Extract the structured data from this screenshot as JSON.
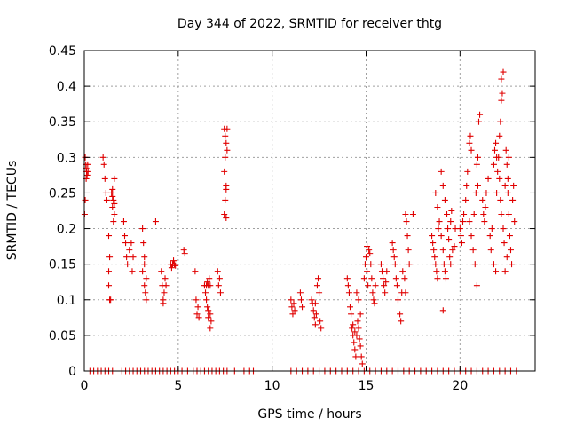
{
  "chart_data": {
    "type": "scatter",
    "title": "Day 344 of 2022, SRMTID for receiver thtg",
    "xlabel": "GPS time / hours",
    "ylabel": "SRMTID / TECUs",
    "xlim": [
      0,
      24
    ],
    "ylim": [
      0,
      0.45
    ],
    "xticks": [
      0,
      5,
      10,
      15,
      20
    ],
    "xtick_labels": [
      "0",
      "5",
      "10",
      "15",
      "20"
    ],
    "yticks": [
      0,
      0.05,
      0.1,
      0.15,
      0.2,
      0.25,
      0.3,
      0.35,
      0.4,
      0.45
    ],
    "ytick_labels": [
      "0",
      "0.05",
      "0.1",
      "0.15",
      "0.2",
      "0.25",
      "0.3",
      "0.35",
      "0.4",
      "0.45"
    ],
    "grid": true,
    "marker": "+",
    "colors": {
      "series": "#e00000",
      "grid": "#a0a0a0",
      "axis": "#000000"
    },
    "series": [
      {
        "name": "SRMTID",
        "points": [
          [
            0.05,
            0.3
          ],
          [
            0.08,
            0.29
          ],
          [
            0.1,
            0.285
          ],
          [
            0.12,
            0.28
          ],
          [
            0.15,
            0.275
          ],
          [
            0.18,
            0.29
          ],
          [
            0.2,
            0.28
          ],
          [
            0.05,
            0.24
          ],
          [
            0.02,
            0.22
          ],
          [
            0.1,
            0.27
          ],
          [
            1.0,
            0.3
          ],
          [
            1.05,
            0.29
          ],
          [
            1.1,
            0.27
          ],
          [
            1.15,
            0.25
          ],
          [
            1.2,
            0.24
          ],
          [
            1.3,
            0.19
          ],
          [
            1.35,
            0.16
          ],
          [
            1.3,
            0.12
          ],
          [
            1.35,
            0.1
          ],
          [
            1.4,
            0.1
          ],
          [
            1.3,
            0.14
          ],
          [
            1.45,
            0.25
          ],
          [
            1.5,
            0.245
          ],
          [
            1.55,
            0.24
          ],
          [
            1.5,
            0.23
          ],
          [
            1.6,
            0.22
          ],
          [
            1.55,
            0.21
          ],
          [
            1.6,
            0.27
          ],
          [
            1.5,
            0.255
          ],
          [
            1.6,
            0.235
          ],
          [
            2.1,
            0.21
          ],
          [
            2.15,
            0.19
          ],
          [
            2.2,
            0.18
          ],
          [
            2.25,
            0.16
          ],
          [
            2.3,
            0.15
          ],
          [
            2.4,
            0.17
          ],
          [
            2.5,
            0.18
          ],
          [
            2.6,
            0.16
          ],
          [
            2.55,
            0.14
          ],
          [
            3.1,
            0.2
          ],
          [
            3.15,
            0.18
          ],
          [
            3.2,
            0.16
          ],
          [
            3.1,
            0.14
          ],
          [
            3.2,
            0.12
          ],
          [
            3.3,
            0.1
          ],
          [
            3.25,
            0.11
          ],
          [
            3.3,
            0.13
          ],
          [
            3.2,
            0.15
          ],
          [
            3.8,
            0.21
          ],
          [
            4.1,
            0.14
          ],
          [
            4.15,
            0.12
          ],
          [
            4.2,
            0.1
          ],
          [
            4.25,
            0.11
          ],
          [
            4.3,
            0.13
          ],
          [
            4.35,
            0.12
          ],
          [
            4.2,
            0.095
          ],
          [
            4.6,
            0.15
          ],
          [
            4.65,
            0.145
          ],
          [
            4.7,
            0.15
          ],
          [
            4.75,
            0.155
          ],
          [
            4.8,
            0.15
          ],
          [
            4.85,
            0.148
          ],
          [
            5.3,
            0.17
          ],
          [
            5.35,
            0.165
          ],
          [
            5.9,
            0.14
          ],
          [
            5.95,
            0.1
          ],
          [
            6.0,
            0.08
          ],
          [
            6.05,
            0.09
          ],
          [
            6.1,
            0.075
          ],
          [
            6.4,
            0.12
          ],
          [
            6.45,
            0.11
          ],
          [
            6.5,
            0.1
          ],
          [
            6.55,
            0.09
          ],
          [
            6.6,
            0.085
          ],
          [
            6.6,
            0.12
          ],
          [
            6.65,
            0.13
          ],
          [
            6.7,
            0.12
          ],
          [
            6.7,
            0.08
          ],
          [
            6.75,
            0.07
          ],
          [
            6.7,
            0.06
          ],
          [
            6.6,
            0.075
          ],
          [
            6.5,
            0.12
          ],
          [
            6.55,
            0.125
          ],
          [
            7.1,
            0.14
          ],
          [
            7.15,
            0.12
          ],
          [
            7.2,
            0.13
          ],
          [
            7.25,
            0.11
          ],
          [
            7.45,
            0.34
          ],
          [
            7.5,
            0.33
          ],
          [
            7.55,
            0.32
          ],
          [
            7.6,
            0.31
          ],
          [
            7.5,
            0.3
          ],
          [
            7.45,
            0.28
          ],
          [
            7.55,
            0.26
          ],
          [
            7.5,
            0.24
          ],
          [
            7.45,
            0.22
          ],
          [
            7.55,
            0.215
          ],
          [
            7.6,
            0.34
          ],
          [
            7.55,
            0.255
          ],
          [
            11.0,
            0.1
          ],
          [
            11.05,
            0.09
          ],
          [
            11.1,
            0.08
          ],
          [
            11.15,
            0.095
          ],
          [
            11.2,
            0.085
          ],
          [
            11.5,
            0.11
          ],
          [
            11.55,
            0.1
          ],
          [
            11.6,
            0.09
          ],
          [
            12.1,
            0.1
          ],
          [
            12.15,
            0.095
          ],
          [
            12.2,
            0.085
          ],
          [
            12.25,
            0.075
          ],
          [
            12.3,
            0.065
          ],
          [
            12.35,
            0.08
          ],
          [
            12.4,
            0.12
          ],
          [
            12.45,
            0.13
          ],
          [
            12.5,
            0.11
          ],
          [
            12.55,
            0.07
          ],
          [
            12.6,
            0.06
          ],
          [
            12.3,
            0.095
          ],
          [
            14.0,
            0.13
          ],
          [
            14.05,
            0.12
          ],
          [
            14.1,
            0.11
          ],
          [
            14.15,
            0.09
          ],
          [
            14.2,
            0.08
          ],
          [
            14.25,
            0.06
          ],
          [
            14.3,
            0.05
          ],
          [
            14.35,
            0.04
          ],
          [
            14.4,
            0.03
          ],
          [
            14.45,
            0.02
          ],
          [
            14.5,
            0.05
          ],
          [
            14.55,
            0.07
          ],
          [
            14.6,
            0.06
          ],
          [
            14.65,
            0.045
          ],
          [
            14.7,
            0.035
          ],
          [
            14.75,
            0.02
          ],
          [
            14.8,
            0.01
          ],
          [
            14.5,
            0.11
          ],
          [
            14.6,
            0.1
          ],
          [
            14.7,
            0.08
          ],
          [
            14.4,
            0.055
          ],
          [
            14.3,
            0.065
          ],
          [
            14.9,
            0.13
          ],
          [
            14.95,
            0.15
          ],
          [
            15.0,
            0.16
          ],
          [
            15.05,
            0.14
          ],
          [
            15.1,
            0.12
          ],
          [
            15.15,
            0.17
          ],
          [
            15.2,
            0.165
          ],
          [
            15.25,
            0.15
          ],
          [
            15.3,
            0.13
          ],
          [
            15.35,
            0.11
          ],
          [
            15.4,
            0.1
          ],
          [
            15.45,
            0.095
          ],
          [
            15.5,
            0.12
          ],
          [
            15.05,
            0.175
          ],
          [
            15.8,
            0.15
          ],
          [
            15.85,
            0.14
          ],
          [
            15.9,
            0.13
          ],
          [
            15.95,
            0.12
          ],
          [
            16.0,
            0.11
          ],
          [
            16.05,
            0.125
          ],
          [
            16.1,
            0.14
          ],
          [
            16.4,
            0.18
          ],
          [
            16.45,
            0.17
          ],
          [
            16.5,
            0.16
          ],
          [
            16.55,
            0.15
          ],
          [
            16.6,
            0.13
          ],
          [
            16.65,
            0.12
          ],
          [
            16.7,
            0.1
          ],
          [
            16.8,
            0.08
          ],
          [
            16.85,
            0.07
          ],
          [
            16.9,
            0.11
          ],
          [
            16.95,
            0.14
          ],
          [
            17.1,
            0.22
          ],
          [
            17.15,
            0.21
          ],
          [
            17.2,
            0.19
          ],
          [
            17.25,
            0.17
          ],
          [
            17.3,
            0.15
          ],
          [
            17.05,
            0.13
          ],
          [
            17.1,
            0.11
          ],
          [
            17.5,
            0.22
          ],
          [
            18.5,
            0.19
          ],
          [
            18.55,
            0.18
          ],
          [
            18.6,
            0.17
          ],
          [
            18.65,
            0.16
          ],
          [
            18.7,
            0.15
          ],
          [
            18.75,
            0.14
          ],
          [
            18.8,
            0.13
          ],
          [
            18.7,
            0.25
          ],
          [
            18.8,
            0.23
          ],
          [
            18.9,
            0.21
          ],
          [
            18.85,
            0.2
          ],
          [
            19.0,
            0.19
          ],
          [
            19.1,
            0.17
          ],
          [
            19.15,
            0.15
          ],
          [
            19.2,
            0.14
          ],
          [
            19.25,
            0.13
          ],
          [
            19.0,
            0.28
          ],
          [
            19.1,
            0.26
          ],
          [
            19.2,
            0.24
          ],
          [
            19.3,
            0.22
          ],
          [
            19.35,
            0.2
          ],
          [
            19.4,
            0.185
          ],
          [
            19.45,
            0.16
          ],
          [
            19.5,
            0.15
          ],
          [
            19.6,
            0.17
          ],
          [
            19.7,
            0.175
          ],
          [
            19.75,
            0.2
          ],
          [
            19.1,
            0.085
          ],
          [
            19.5,
            0.21
          ],
          [
            19.55,
            0.225
          ],
          [
            20.0,
            0.2
          ],
          [
            20.05,
            0.19
          ],
          [
            20.1,
            0.18
          ],
          [
            20.15,
            0.21
          ],
          [
            20.2,
            0.22
          ],
          [
            20.3,
            0.24
          ],
          [
            20.35,
            0.26
          ],
          [
            20.4,
            0.28
          ],
          [
            20.5,
            0.32
          ],
          [
            20.55,
            0.33
          ],
          [
            20.6,
            0.31
          ],
          [
            20.5,
            0.21
          ],
          [
            20.6,
            0.19
          ],
          [
            20.7,
            0.17
          ],
          [
            20.8,
            0.15
          ],
          [
            20.9,
            0.12
          ],
          [
            20.75,
            0.22
          ],
          [
            20.85,
            0.25
          ],
          [
            20.95,
            0.26
          ],
          [
            20.9,
            0.29
          ],
          [
            21.0,
            0.35
          ],
          [
            21.05,
            0.36
          ],
          [
            20.95,
            0.3
          ],
          [
            21.2,
            0.24
          ],
          [
            21.25,
            0.22
          ],
          [
            21.3,
            0.21
          ],
          [
            21.35,
            0.23
          ],
          [
            21.4,
            0.25
          ],
          [
            21.5,
            0.27
          ],
          [
            21.6,
            0.19
          ],
          [
            21.65,
            0.17
          ],
          [
            21.7,
            0.2
          ],
          [
            21.8,
            0.29
          ],
          [
            21.85,
            0.31
          ],
          [
            21.9,
            0.32
          ],
          [
            21.95,
            0.3
          ],
          [
            21.8,
            0.15
          ],
          [
            21.9,
            0.14
          ],
          [
            21.95,
            0.25
          ],
          [
            22.0,
            0.28
          ],
          [
            22.05,
            0.3
          ],
          [
            22.1,
            0.33
          ],
          [
            22.15,
            0.35
          ],
          [
            22.2,
            0.38
          ],
          [
            22.25,
            0.39
          ],
          [
            22.3,
            0.42
          ],
          [
            22.2,
            0.41
          ],
          [
            22.1,
            0.27
          ],
          [
            22.15,
            0.24
          ],
          [
            22.2,
            0.22
          ],
          [
            22.3,
            0.2
          ],
          [
            22.35,
            0.18
          ],
          [
            22.4,
            0.26
          ],
          [
            22.45,
            0.31
          ],
          [
            22.5,
            0.29
          ],
          [
            22.55,
            0.27
          ],
          [
            22.6,
            0.3
          ],
          [
            22.55,
            0.25
          ],
          [
            22.6,
            0.22
          ],
          [
            22.65,
            0.19
          ],
          [
            22.7,
            0.17
          ],
          [
            22.75,
            0.15
          ],
          [
            22.8,
            0.24
          ],
          [
            22.85,
            0.26
          ],
          [
            22.9,
            0.21
          ],
          [
            22.5,
            0.16
          ],
          [
            22.4,
            0.14
          ]
        ],
        "zero_x": [
          0.3,
          0.5,
          0.7,
          0.9,
          1.1,
          1.3,
          1.5,
          2.0,
          2.2,
          2.4,
          2.6,
          2.8,
          3.0,
          3.2,
          3.4,
          3.6,
          3.8,
          4.0,
          4.2,
          4.4,
          4.6,
          4.8,
          5.0,
          5.2,
          5.5,
          5.8,
          6.0,
          6.2,
          6.4,
          6.6,
          6.8,
          7.0,
          7.2,
          7.4,
          7.6,
          8.0,
          8.5,
          8.8,
          9.0,
          11.0,
          11.3,
          11.6,
          11.9,
          12.2,
          12.5,
          12.8,
          13.1,
          13.4,
          13.7,
          14.0,
          14.3,
          14.6,
          14.9,
          15.2,
          15.5,
          15.8,
          16.1,
          16.4,
          16.7,
          17.0,
          17.3,
          17.6,
          17.9,
          18.2,
          18.5,
          18.8,
          19.1,
          19.4,
          19.7,
          20.0,
          20.3,
          20.6,
          20.9,
          21.2,
          21.5,
          21.8,
          22.1,
          22.4,
          22.7,
          23.0
        ]
      }
    ]
  }
}
